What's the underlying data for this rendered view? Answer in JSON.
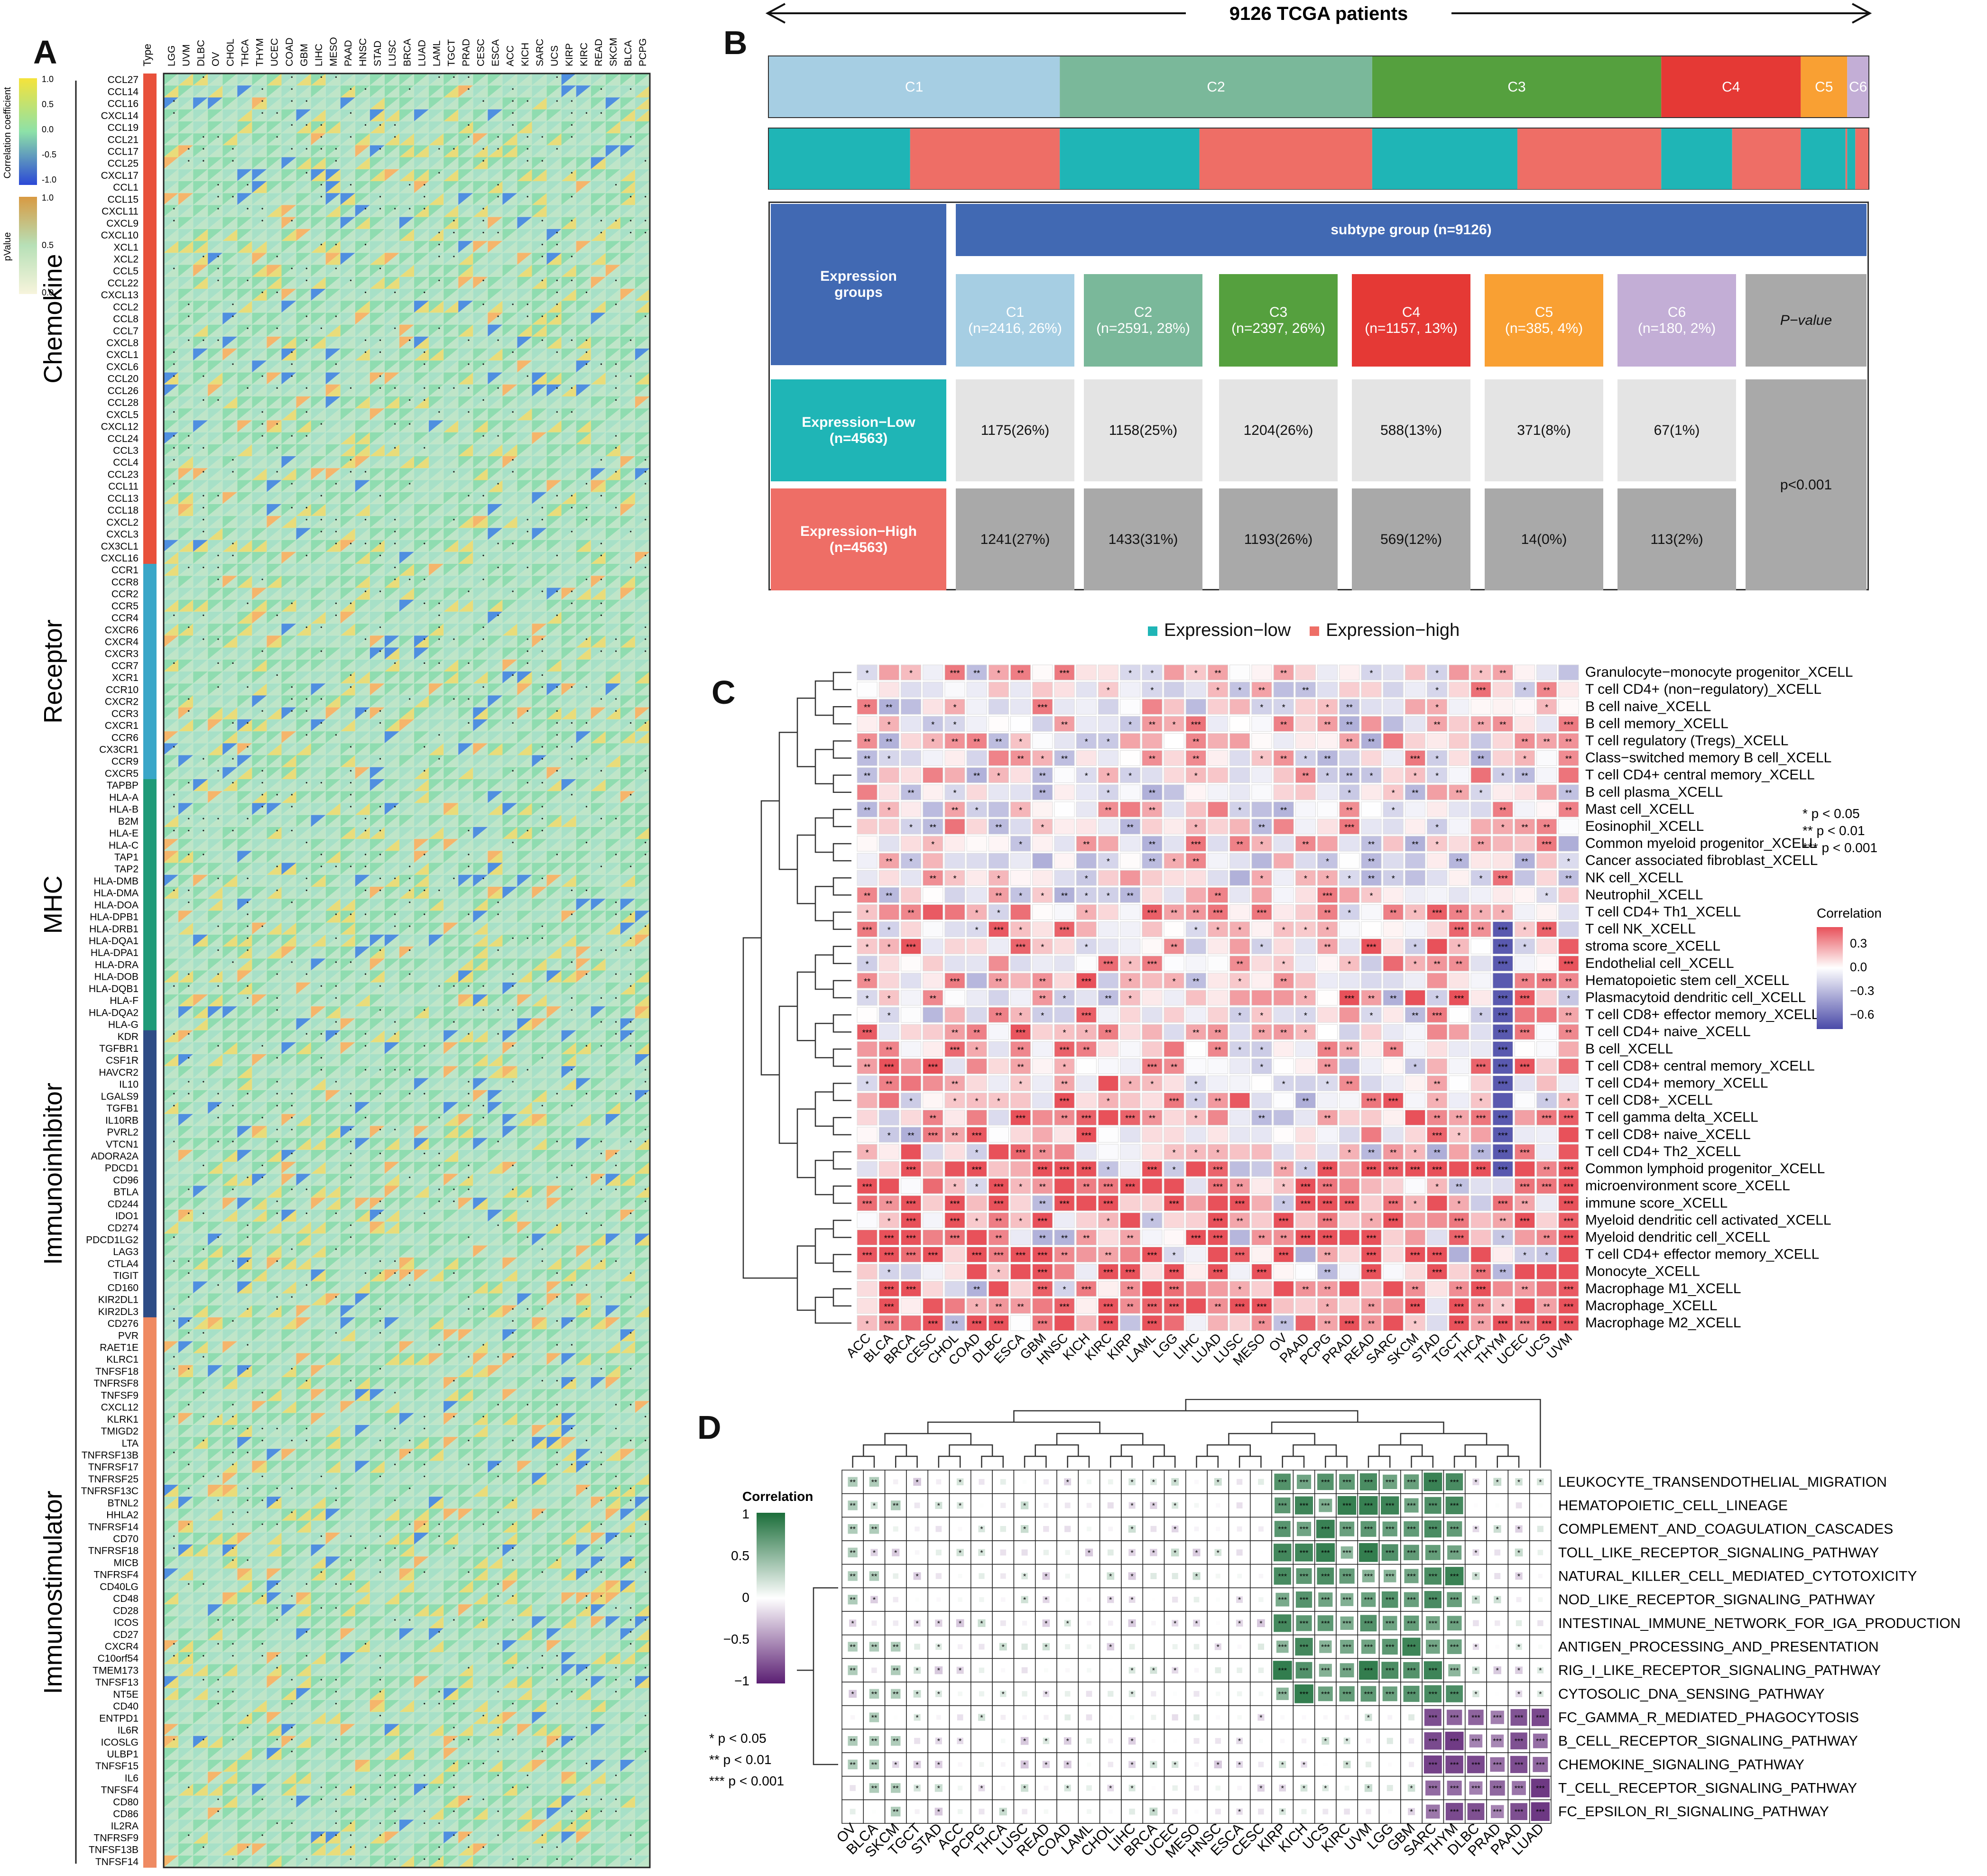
{
  "panels": {
    "a": "A",
    "b": "B",
    "c": "C",
    "d": "D"
  },
  "chart_data": [
    {
      "type": "heatmap",
      "panel": "A",
      "column_header": "Type",
      "columns": [
        "LGG",
        "UVM",
        "DLBC",
        "OV",
        "CHOL",
        "THCA",
        "THYM",
        "UCEC",
        "COAD",
        "GBM",
        "LIHC",
        "MESO",
        "PAAD",
        "HNSC",
        "STAD",
        "LUSC",
        "BRCA",
        "LUAD",
        "LAML",
        "TGCT",
        "PRAD",
        "CESC",
        "ESCA",
        "ACC",
        "KICH",
        "SARC",
        "UCS",
        "KIRP",
        "KIRC",
        "READ",
        "SKCM",
        "BLCA",
        "PCPG"
      ],
      "legend_correlation": {
        "title": "Correlation coefficient",
        "ticks": [
          "1.0",
          "0.5",
          "0.0",
          "-0.5",
          "-1.0"
        ]
      },
      "legend_pvalue": {
        "title": "pValue",
        "ticks": [
          "1.0",
          "0.5",
          "0.0"
        ]
      },
      "groups": [
        {
          "name": "Chemokine",
          "color": "#e8513b",
          "rows": [
            "CCL27",
            "CCL14",
            "CCL16",
            "CXCL14",
            "CCL19",
            "CCL21",
            "CCL17",
            "CCL25",
            "CXCL17",
            "CCL1",
            "CCL15",
            "CXCL11",
            "CXCL9",
            "CXCL10",
            "XCL1",
            "XCL2",
            "CCL5",
            "CCL22",
            "CXCL13",
            "CCL2",
            "CCL8",
            "CCL7",
            "CXCL8",
            "CXCL1",
            "CXCL6",
            "CCL20",
            "CCL26",
            "CCL28",
            "CXCL5",
            "CXCL12",
            "CCL24",
            "CCL3",
            "CCL4",
            "CCL23",
            "CCL11",
            "CCL13",
            "CCL18",
            "CXCL2",
            "CXCL3",
            "CX3CL1",
            "CXCL16"
          ]
        },
        {
          "name": "Receptor",
          "color": "#3aa6c8",
          "rows": [
            "CCR1",
            "CCR8",
            "CCR2",
            "CCR5",
            "CCR4",
            "CXCR6",
            "CXCR4",
            "CXCR3",
            "CCR7",
            "XCR1",
            "CCR10",
            "CXCR2",
            "CCR3",
            "CXCR1",
            "CCR6",
            "CX3CR1",
            "CCR9",
            "CXCR5"
          ]
        },
        {
          "name": "MHC",
          "color": "#1f9a78",
          "rows": [
            "TAPBP",
            "HLA-A",
            "HLA-B",
            "B2M",
            "HLA-E",
            "HLA-C",
            "TAP1",
            "TAP2",
            "HLA-DMB",
            "HLA-DMA",
            "HLA-DOA",
            "HLA-DPB1",
            "HLA-DRB1",
            "HLA-DQA1",
            "HLA-DPA1",
            "HLA-DRA",
            "HLA-DOB",
            "HLA-DQB1",
            "HLA-F",
            "HLA-DQA2",
            "HLA-G"
          ]
        },
        {
          "name": "Immunoinhibitor",
          "color": "#2e4c86",
          "rows": [
            "KDR",
            "TGFBR1",
            "CSF1R",
            "HAVCR2",
            "IL10",
            "LGALS9",
            "TGFB1",
            "IL10RB",
            "PVRL2",
            "VTCN1",
            "ADORA2A",
            "PDCD1",
            "CD96",
            "BTLA",
            "CD244",
            "IDO1",
            "CD274",
            "PDCD1LG2",
            "LAG3",
            "CTLA4",
            "TIGIT",
            "CD160",
            "KIR2DL1",
            "KIR2DL3"
          ]
        },
        {
          "name": "Immunostimulator",
          "color": "#ef8a62",
          "rows": [
            "CD276",
            "PVR",
            "RAET1E",
            "KLRC1",
            "TNFSF18",
            "TNFRSF8",
            "TNFSF9",
            "CXCL12",
            "KLRK1",
            "TMIGD2",
            "LTA",
            "TNFRSF13B",
            "TNFRSF17",
            "TNFRSF25",
            "TNFRSF13C",
            "BTNL2",
            "HHLA2",
            "TNFRSF14",
            "CD70",
            "TNFRSF18",
            "MICB",
            "TNFRSF4",
            "CD40LG",
            "CD48",
            "CD28",
            "ICOS",
            "CD27",
            "CXCR4",
            "C10orf54",
            "TMEM173",
            "TNFSF13",
            "NT5E",
            "CD40",
            "ENTPD1",
            "IL6R",
            "ICOSLG",
            "ULBP1",
            "TNFSF15",
            "IL6",
            "TNFSF4",
            "CD80",
            "CD86",
            "IL2RA",
            "TNFRSF9",
            "TNFSF13B",
            "TNFSF14"
          ]
        }
      ]
    },
    {
      "type": "table",
      "panel": "B",
      "header_arrow": "9126 TCGA patients",
      "clusters": [
        {
          "label": "C1",
          "color": "#a6cee3",
          "share": 2416
        },
        {
          "label": "C2",
          "color": "#7ab89a",
          "share": 2591
        },
        {
          "label": "C3",
          "color": "#55a03e",
          "share": 2397
        },
        {
          "label": "C4",
          "color": "#e53935",
          "share": 1157
        },
        {
          "label": "C5",
          "color": "#f9a033",
          "share": 385
        },
        {
          "label": "C6",
          "color": "#c3aed6",
          "share": 180
        }
      ],
      "expression_colors": {
        "low": "#1fb5b6",
        "high": "#ee6e66"
      },
      "expression_strip": [
        {
          "level": "low",
          "share": 1175
        },
        {
          "level": "high",
          "share": 1241
        },
        {
          "level": "low",
          "share": 1158
        },
        {
          "level": "high",
          "share": 1433
        },
        {
          "level": "low",
          "share": 1204
        },
        {
          "level": "high",
          "share": 1193
        },
        {
          "level": "low",
          "share": 588
        },
        {
          "level": "high",
          "share": 569
        },
        {
          "level": "low",
          "share": 371
        },
        {
          "level": "high",
          "share": 14
        },
        {
          "level": "low",
          "share": 67
        },
        {
          "level": "high",
          "share": 113
        }
      ],
      "table": {
        "corner": "Expression\ngroups",
        "group_header": "subtype group (n=9126)",
        "columns": [
          "C1\n(n=2416, 26%)",
          "C2\n(n=2591, 28%)",
          "C3\n(n=2397, 26%)",
          "C4\n(n=1157, 13%)",
          "C5\n(n=385, 4%)",
          "C6\n(n=180, 2%)"
        ],
        "pvalue_header": "P−value",
        "rows": [
          {
            "label": "Expression−Low\n(n=4563)",
            "values": [
              "1175(26%)",
              "1158(25%)",
              "1204(26%)",
              "588(13%)",
              "371(8%)",
              "67(1%)"
            ]
          },
          {
            "label": "Expression−High\n(n=4563)",
            "values": [
              "1241(27%)",
              "1433(31%)",
              "1193(26%)",
              "569(12%)",
              "14(0%)",
              "113(2%)"
            ]
          }
        ],
        "pvalue": "p<0.001"
      },
      "legend": [
        "Expression−low",
        "Expression−high"
      ]
    },
    {
      "type": "heatmap",
      "panel": "C",
      "columns": [
        "ACC",
        "BLCA",
        "BRCA",
        "CESC",
        "CHOL",
        "COAD",
        "DLBC",
        "ESCA",
        "GBM",
        "HNSC",
        "KICH",
        "KIRC",
        "KIRP",
        "LAML",
        "LGG",
        "LIHC",
        "LUAD",
        "LUSC",
        "MESO",
        "OV",
        "PAAD",
        "PCPG",
        "PRAD",
        "READ",
        "SARC",
        "SKCM",
        "STAD",
        "TGCT",
        "THCA",
        "THYM",
        "UCEC",
        "UCS",
        "UVM"
      ],
      "rows": [
        "Granulocyte−monocyte progenitor_XCELL",
        "T cell CD4+ (non−regulatory)_XCELL",
        "B cell naive_XCELL",
        "B cell memory_XCELL",
        "T cell regulatory (Tregs)_XCELL",
        "Class−switched memory B cell_XCELL",
        "T cell CD4+ central memory_XCELL",
        "B cell plasma_XCELL",
        "Mast cell_XCELL",
        "Eosinophil_XCELL",
        "Common myeloid progenitor_XCELL",
        "Cancer associated fibroblast_XCELL",
        "NK cell_XCELL",
        "Neutrophil_XCELL",
        "T cell CD4+ Th1_XCELL",
        "T cell NK_XCELL",
        "stroma score_XCELL",
        "Endothelial cell_XCELL",
        "Hematopoietic stem cell_XCELL",
        "Plasmacytoid dendritic cell_XCELL",
        "T cell CD8+ effector memory_XCELL",
        "T cell CD4+ naive_XCELL",
        "B cell_XCELL",
        "T cell CD8+ central memory_XCELL",
        "T cell CD4+ memory_XCELL",
        "T cell CD8+_XCELL",
        "T cell gamma delta_XCELL",
        "T cell CD8+ naive_XCELL",
        "T cell CD4+ Th2_XCELL",
        "Common lymphoid progenitor_XCELL",
        "microenvironment score_XCELL",
        "immune score_XCELL",
        "Myeloid dendritic cell activated_XCELL",
        "Myeloid dendritic cell_XCELL",
        "T cell CD4+ effector memory_XCELL",
        "Monocyte_XCELL",
        "Macrophage M1_XCELL",
        "Macrophage_XCELL",
        "Macrophage M2_XCELL"
      ],
      "significance": [
        "*  p < 0.05",
        "**  p < 0.01",
        "*** p < 0.001"
      ],
      "legend": {
        "title": "Correlation",
        "ticks": [
          "0.3",
          "0.0",
          "−0.3",
          "−0.6"
        ],
        "range": [
          -0.6,
          0.4
        ]
      }
    },
    {
      "type": "heatmap",
      "panel": "D",
      "columns": [
        "OV",
        "BLCA",
        "SKCM",
        "TGCT",
        "STAD",
        "ACC",
        "PCPG",
        "THCA",
        "LUSC",
        "READ",
        "COAD",
        "LAML",
        "CHOL",
        "LIHC",
        "BRCA",
        "UCEC",
        "MESO",
        "HNSC",
        "ESCA",
        "CESC",
        "KIRP",
        "KICH",
        "UCS",
        "KIRC",
        "UVM",
        "LGG",
        "GBM",
        "SARC",
        "THYM",
        "DLBC",
        "PRAD",
        "PAAD",
        "LUAD"
      ],
      "rows": [
        "LEUKOCYTE_TRANSENDOTHELIAL_MIGRATION",
        "HEMATOPOIETIC_CELL_LINEAGE",
        "COMPLEMENT_AND_COAGULATION_CASCADES",
        "TOLL_LIKE_RECEPTOR_SIGNALING_PATHWAY",
        "NATURAL_KILLER_CELL_MEDIATED_CYTOTOXICITY",
        "NOD_LIKE_RECEPTOR_SIGNALING_PATHWAY",
        "INTESTINAL_IMMUNE_NETWORK_FOR_IGA_PRODUCTION",
        "ANTIGEN_PROCESSING_AND_PRESENTATION",
        "RIG_I_LIKE_RECEPTOR_SIGNALING_PATHWAY",
        "CYTOSOLIC_DNA_SENSING_PATHWAY",
        "FC_GAMMA_R_MEDIATED_PHAGOCYTOSIS",
        "B_CELL_RECEPTOR_SIGNALING_PATHWAY",
        "CHEMOKINE_SIGNALING_PATHWAY",
        "T_CELL_RECEPTOR_SIGNALING_PATHWAY",
        "FC_EPSILON_RI_SIGNALING_PATHWAY"
      ],
      "significance": [
        "*  p < 0.05",
        "**  p < 0.01",
        "*** p < 0.001"
      ],
      "legend": {
        "title": "Correlation",
        "ticks": [
          "1",
          "0.5",
          "0",
          "−0.5",
          "−1"
        ],
        "range": [
          -1,
          1
        ]
      }
    }
  ]
}
